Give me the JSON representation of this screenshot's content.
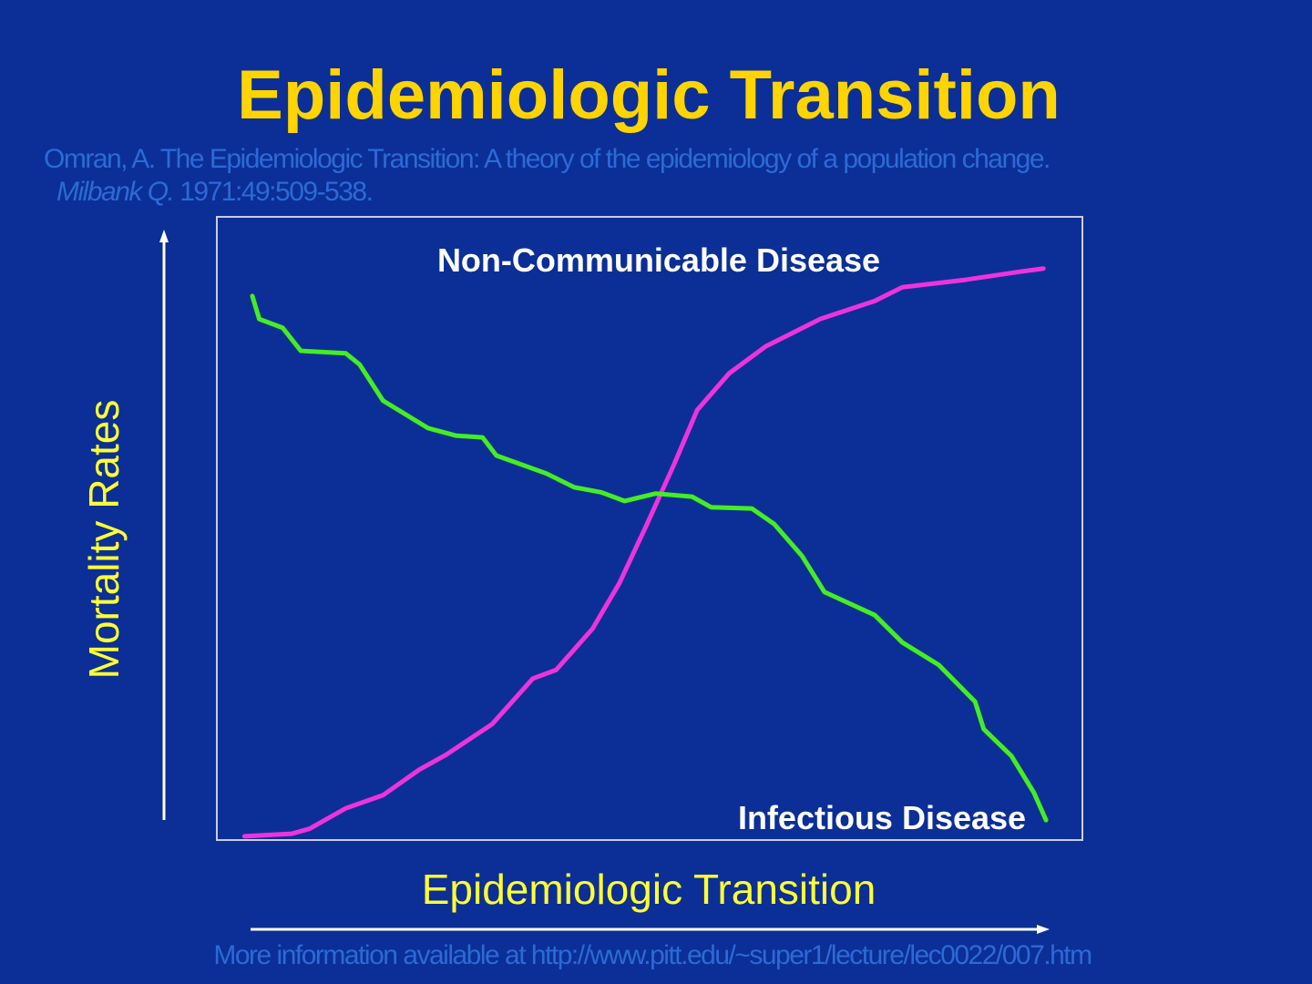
{
  "chart_data": {
    "type": "line",
    "title": "Epidemiologic Transition",
    "citation_line1": "Omran, A.  The Epidemiologic Transition: A theory of the epidemiology of a population change.",
    "citation_journal": "Milbank Q.",
    "citation_details": "1971:49:509-538.",
    "x_label": "Epidemiologic Transition",
    "y_label": "Mortality Rates",
    "footer": "More information available at http://www.pitt.edu/~super1/lecture/lec0022/007.htm",
    "xlim": [
      0,
      100
    ],
    "ylim": [
      0,
      100
    ],
    "series": [
      {
        "name": "Non-Communicable Disease",
        "color": "#ee33dd",
        "x": [
          3.2,
          8.6,
          10.7,
          14.9,
          19.2,
          23.4,
          26.5,
          31.8,
          36.5,
          39.2,
          43.4,
          46.5,
          49.7,
          52.8,
          55.5,
          59.2,
          63.4,
          69.7,
          76.0,
          79.2,
          86.5,
          92.8,
          95.5
        ],
        "values": [
          0.6,
          1.0,
          1.8,
          5.1,
          7.2,
          11.3,
          13.7,
          18.6,
          25.9,
          27.3,
          33.9,
          41.2,
          50.7,
          60.2,
          69.0,
          74.9,
          79.2,
          83.6,
          86.5,
          88.7,
          89.9,
          91.2,
          91.7
        ]
      },
      {
        "name": "Infectious Disease",
        "color": "#44ee22",
        "x": [
          4.1,
          4.9,
          7.6,
          9.7,
          14.9,
          16.5,
          19.2,
          24.4,
          27.6,
          30.7,
          32.3,
          38.1,
          41.3,
          44.4,
          47.1,
          50.7,
          54.9,
          57.1,
          61.8,
          64.4,
          67.6,
          70.2,
          76.0,
          79.2,
          83.4,
          87.6,
          88.6,
          91.8,
          94.4,
          95.8
        ],
        "values": [
          87.3,
          83.6,
          82.2,
          78.5,
          78.1,
          76.3,
          70.5,
          66.1,
          64.9,
          64.6,
          61.7,
          58.8,
          56.6,
          55.8,
          54.4,
          55.6,
          55.1,
          53.4,
          53.2,
          50.7,
          45.6,
          39.8,
          36.1,
          31.7,
          28.1,
          22.2,
          17.8,
          13.5,
          7.6,
          3.2
        ]
      }
    ]
  }
}
